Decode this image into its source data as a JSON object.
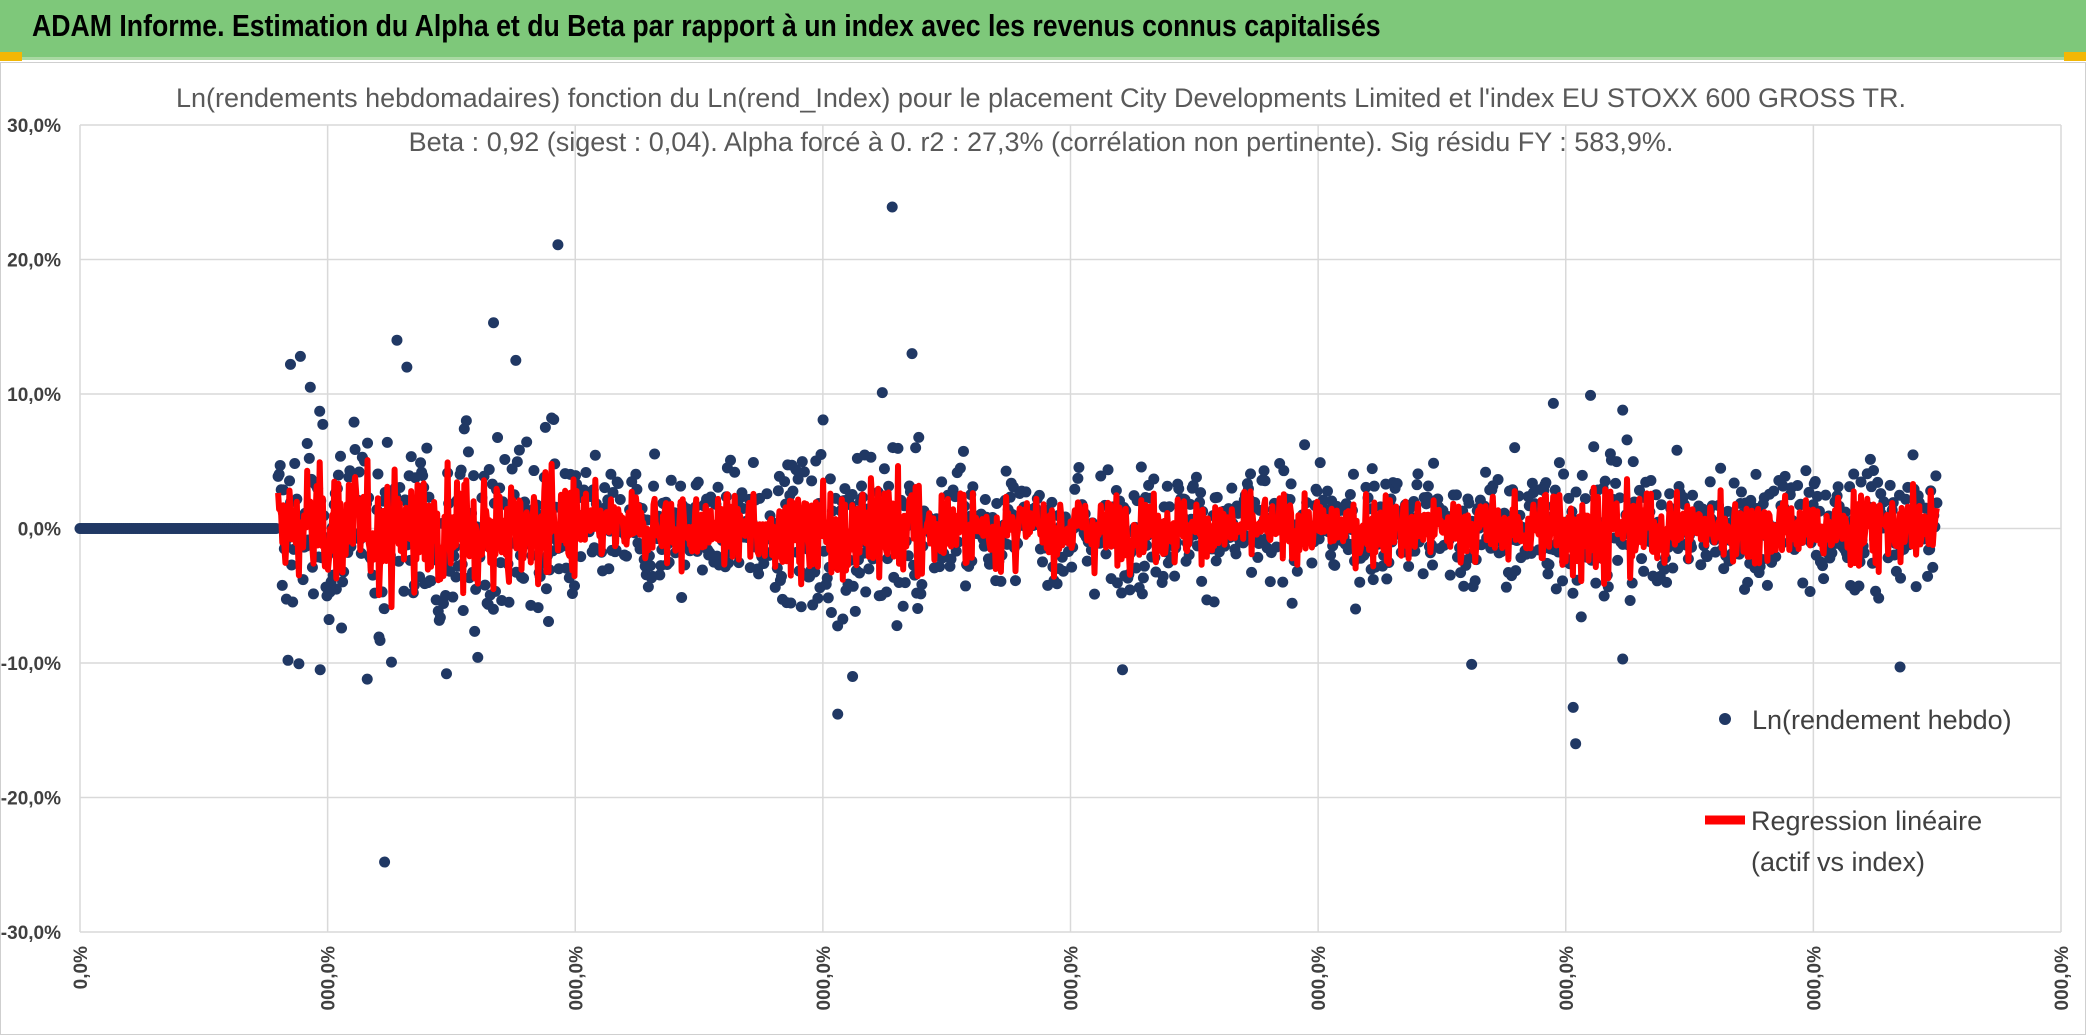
{
  "header": {
    "title": "ADAM Informe. Estimation du Alpha et du Beta par rapport à un index avec les revenus connus capitalisés"
  },
  "colors": {
    "header_bg": "#7ec87a",
    "points": "#203864",
    "regression": "#ff0000",
    "accent": "#f2b705"
  },
  "chart_data": {
    "type": "scatter",
    "title_line1": "Ln(rendements hebdomadaires) fonction du Ln(rend_Index) pour le placement City Developments Limited et l'index EU STOXX 600 GROSS TR.",
    "title_line2": "Beta : 0,92 (sigest : 0,04). Alpha forcé à 0. r2 : 27,3% (corrélation non pertinente). Sig résidu FY : 583,9%.",
    "y_tick_labels": [
      "30,0%",
      "20,0%",
      "10,0%",
      "0,0%",
      "-10,0%",
      "-20,0%",
      "-30,0%"
    ],
    "x_tick_labels": [
      "0,0%",
      "000,0%",
      "000,0%",
      "000,0%",
      "000,0%",
      "000,0%",
      "000,0%",
      "000,0%",
      "000,0%"
    ],
    "ylim": [
      -0.3,
      0.3
    ],
    "xlim": [
      0,
      8
    ],
    "grid": true,
    "legend_position": "bottom-right",
    "series": [
      {
        "name": "Ln(rendement hebdo)",
        "kind": "points",
        "color": "#203864",
        "description_values": {
          "flat_zero_range_x": [
            0,
            0.8
          ],
          "main_range_x": [
            0.8,
            7.5
          ],
          "noted_outliers": [
            [
              0.84,
              -0.098
            ],
            [
              0.85,
              0.122
            ],
            [
              0.89,
              0.128
            ],
            [
              0.93,
              0.105
            ],
            [
              0.97,
              -0.105
            ],
            [
              1.16,
              -0.112
            ],
            [
              1.23,
              -0.248
            ],
            [
              1.28,
              0.14
            ],
            [
              1.32,
              0.12
            ],
            [
              1.48,
              -0.108
            ],
            [
              1.67,
              0.153
            ],
            [
              1.76,
              0.125
            ],
            [
              1.93,
              0.211
            ],
            [
              3.06,
              -0.138
            ],
            [
              3.12,
              -0.11
            ],
            [
              3.24,
              0.101
            ],
            [
              3.28,
              0.239
            ],
            [
              3.36,
              0.13
            ],
            [
              4.21,
              -0.105
            ],
            [
              5.62,
              -0.101
            ],
            [
              5.95,
              0.093
            ],
            [
              6.03,
              -0.133
            ],
            [
              6.04,
              -0.16
            ],
            [
              6.1,
              0.099
            ],
            [
              6.23,
              0.088
            ],
            [
              6.23,
              -0.097
            ],
            [
              7.35,
              -0.103
            ]
          ]
        }
      },
      {
        "name": "Regression linéaire (actif vs index)",
        "kind": "line",
        "color": "#ff0000",
        "beta": 0.92
      }
    ],
    "legend": {
      "points_label": "Ln(rendement hebdo)",
      "line_label_1": "Regression linéaire",
      "line_label_2": "(actif vs index)"
    }
  }
}
